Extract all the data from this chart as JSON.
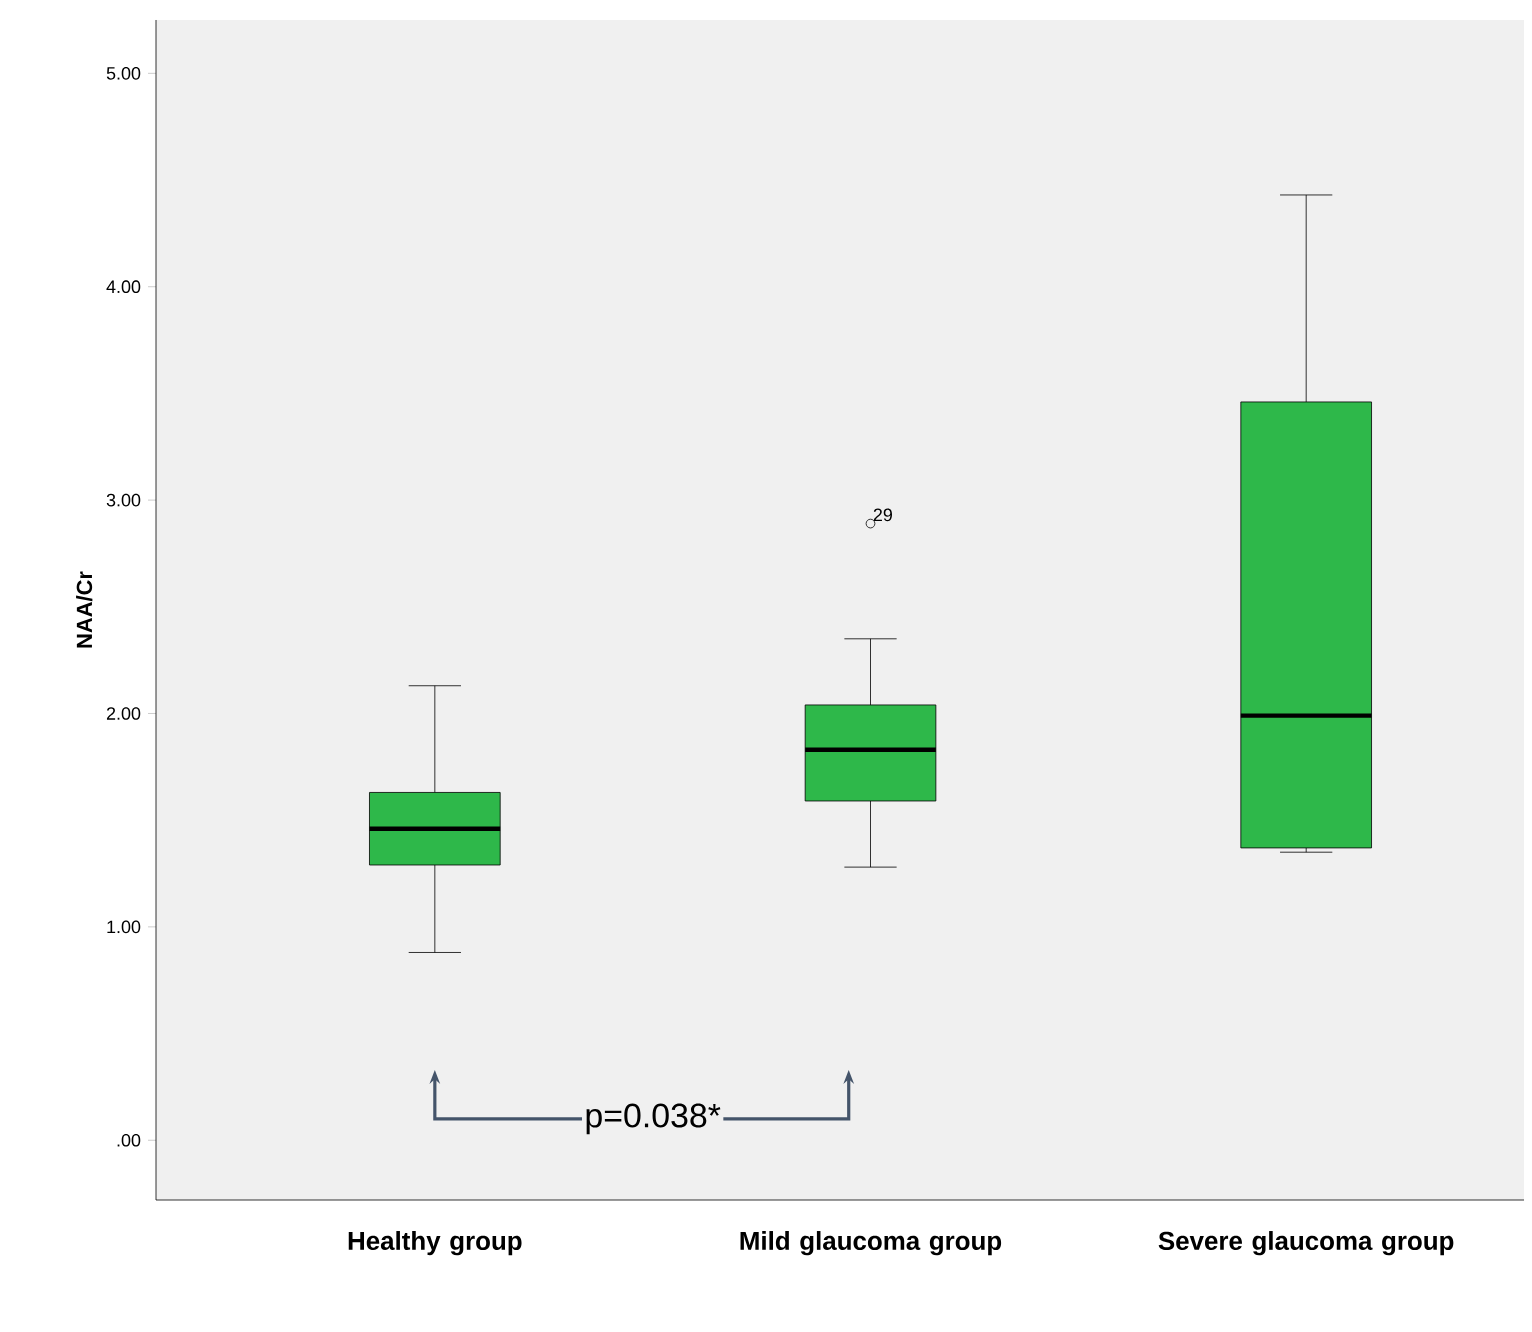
{
  "chart_data": {
    "type": "box",
    "ylabel": "NAA/Cr",
    "categories": [
      "Healthy group",
      "Mild glaucoma group",
      "Severe glaucoma group"
    ],
    "color": "#2eb84a",
    "boxes": [
      {
        "low": 0.88,
        "q1": 1.29,
        "median": 1.46,
        "q3": 1.63,
        "high": 2.13
      },
      {
        "low": 1.28,
        "q1": 1.59,
        "median": 1.83,
        "q3": 2.04,
        "high": 2.35,
        "outliers": [
          2.89
        ]
      },
      {
        "low": 1.35,
        "q1": 1.37,
        "median": 1.99,
        "q3": 3.46,
        "high": 4.43
      }
    ],
    "ylim": [
      -0.28,
      5.25
    ],
    "yticks": [
      {
        "value": 0,
        "label": ".00"
      },
      {
        "value": 1,
        "label": "1.00"
      },
      {
        "value": 2,
        "label": "2.00"
      },
      {
        "value": 3,
        "label": "3.00"
      },
      {
        "value": 4,
        "label": "4.00"
      },
      {
        "value": 5,
        "label": "5.00"
      }
    ],
    "annotations": [
      "29",
      "p=0.038*"
    ]
  }
}
